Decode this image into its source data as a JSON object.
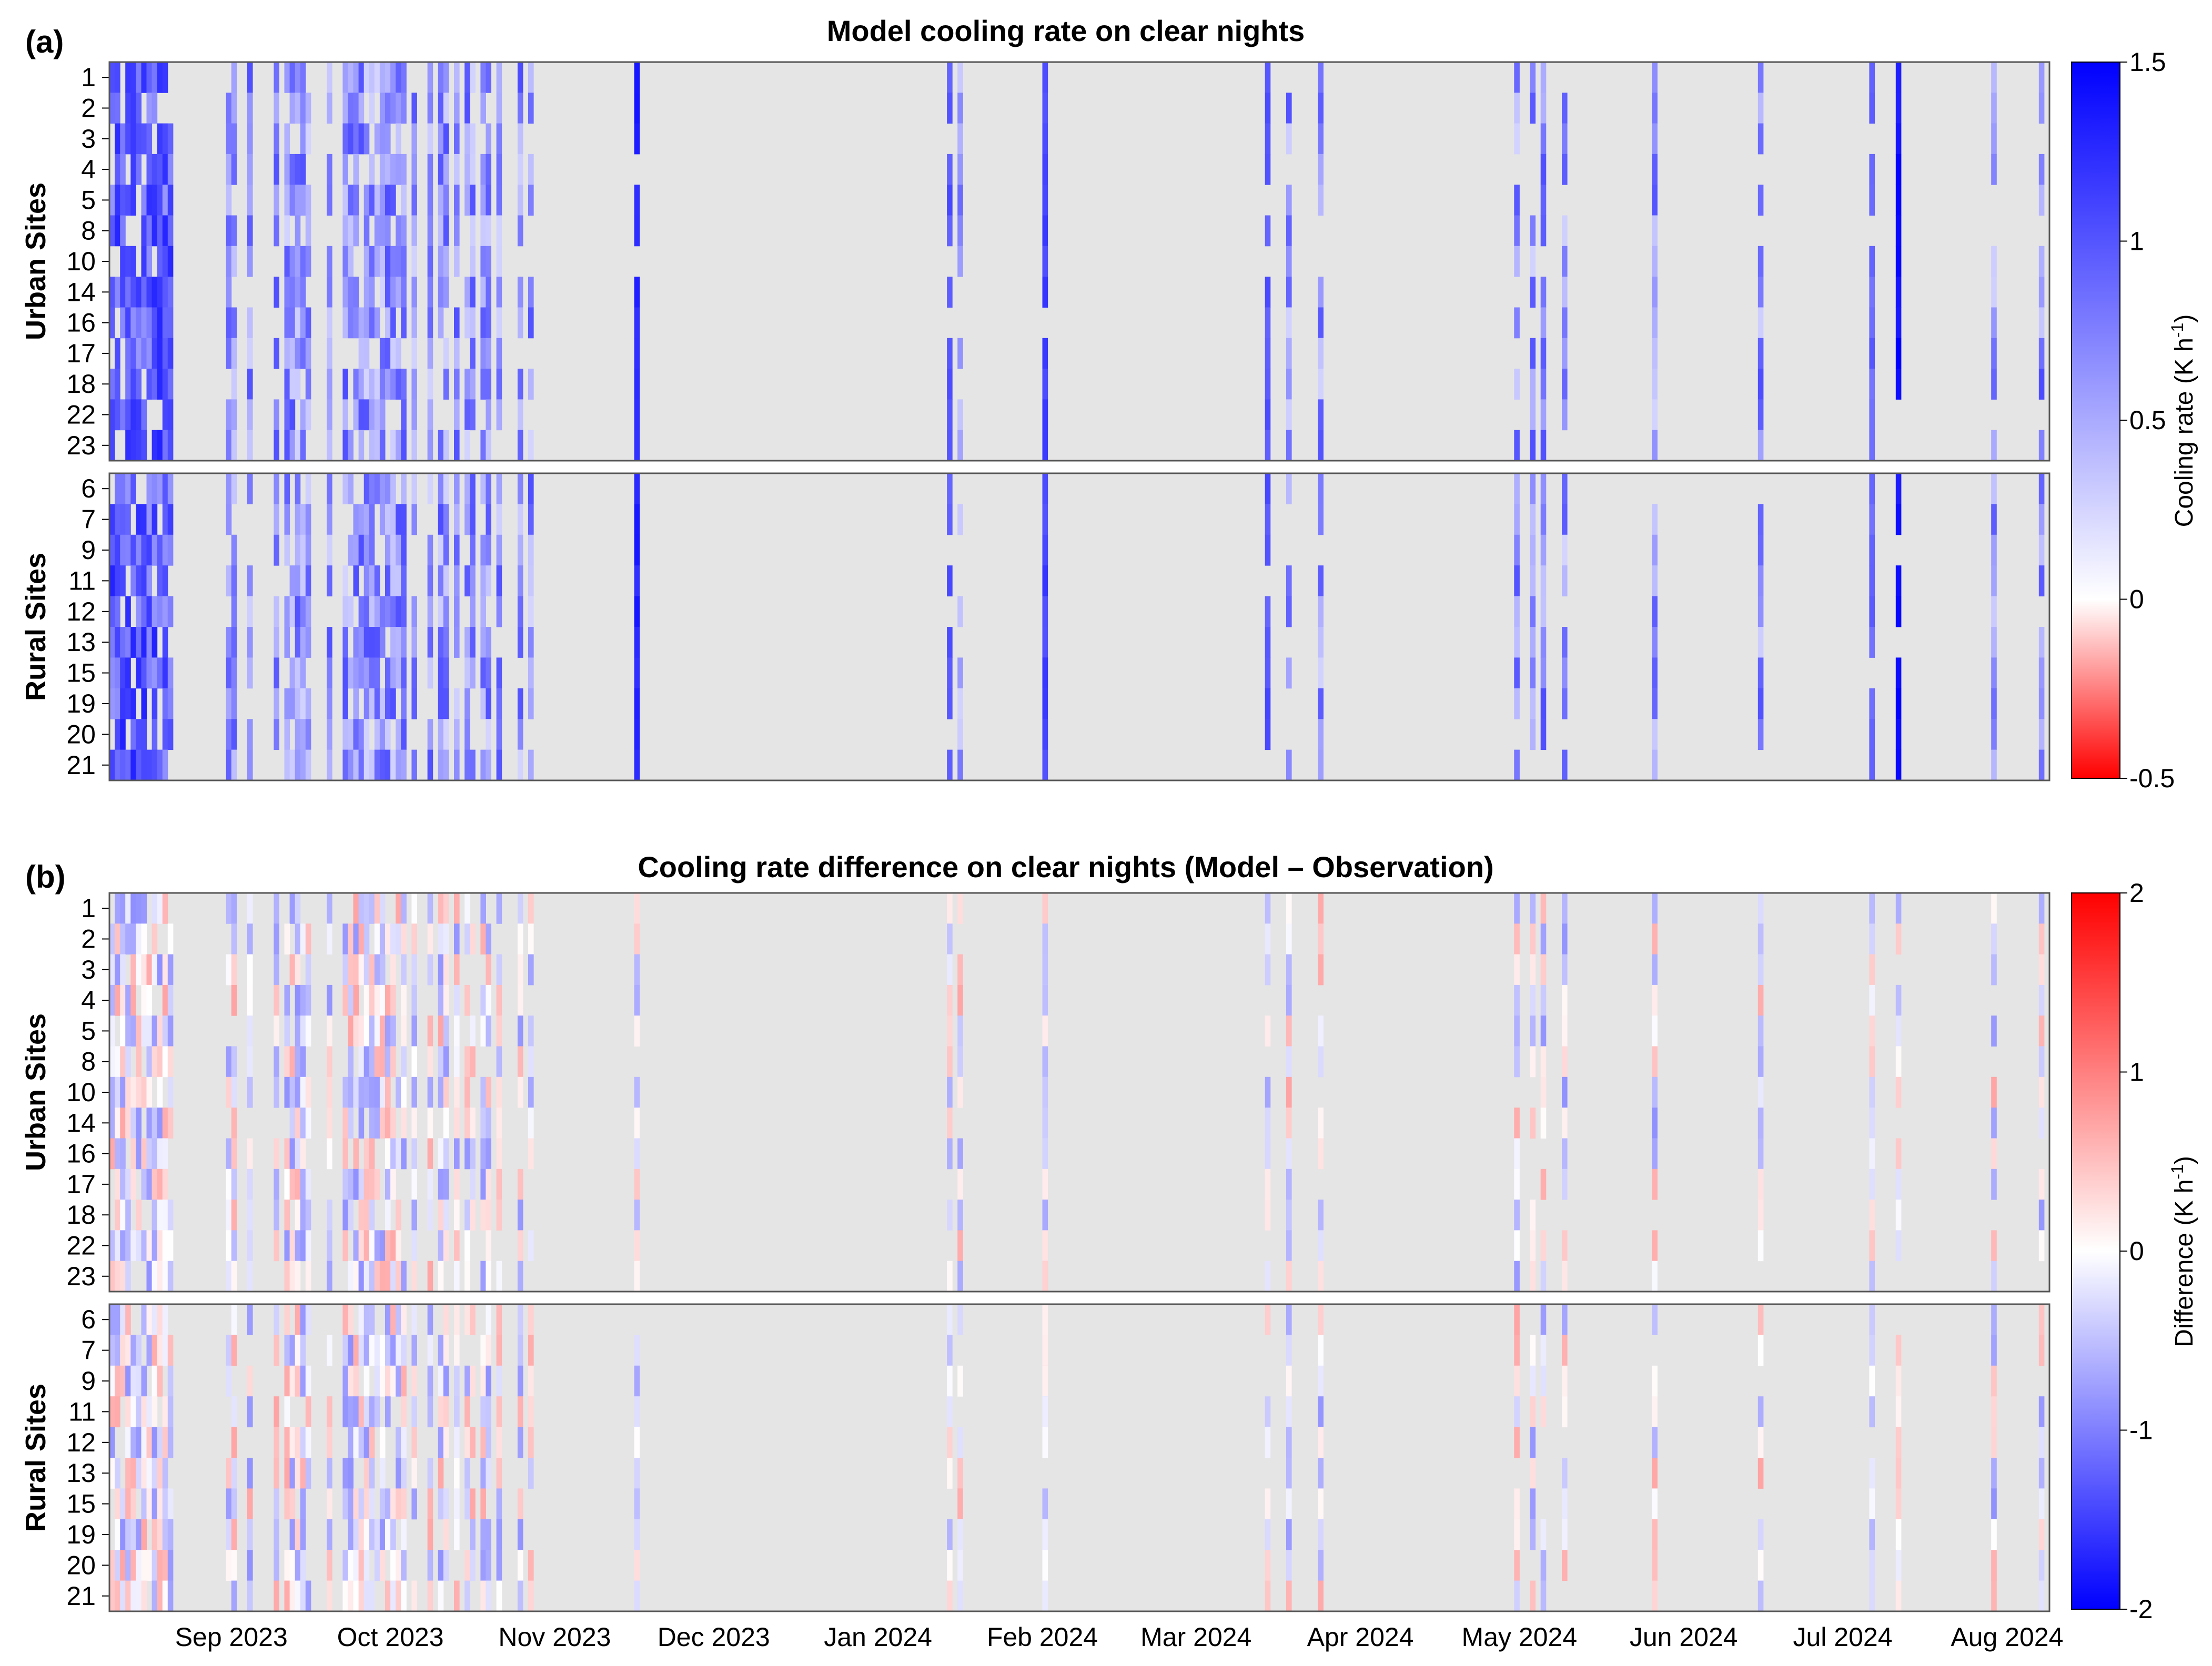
{
  "chart_data": [
    {
      "type": "heatmap",
      "panel_label": "(a)",
      "title": "Model cooling rate on clear nights",
      "x_tick_labels": [
        "Sep 2023",
        "Oct 2023",
        "Nov 2023",
        "Dec 2023",
        "Jan 2024",
        "Feb 2024",
        "Mar 2024",
        "Apr 2024",
        "May 2024",
        "Jun 2024",
        "Jul 2024",
        "Aug 2024"
      ],
      "groups": [
        {
          "name": "Urban Sites",
          "sites": [
            "1",
            "2",
            "3",
            "4",
            "5",
            "8",
            "10",
            "14",
            "16",
            "17",
            "18",
            "22",
            "23"
          ]
        },
        {
          "name": "Rural Sites",
          "sites": [
            "6",
            "7",
            "9",
            "11",
            "12",
            "13",
            "15",
            "19",
            "20",
            "21"
          ]
        }
      ],
      "colorbar": {
        "label": "Cooling rate (K h",
        "label_sup": "-1",
        "label_end": ")",
        "range": [
          -0.5,
          1.5
        ],
        "ticks": [
          "1.5",
          "1",
          "0.5",
          "0",
          "-0.5"
        ],
        "tick_values": [
          1.5,
          1,
          0.5,
          0,
          -0.5
        ],
        "colors": {
          "low": "#ff0000",
          "mid": "#ffffff",
          "high": "#0000ff",
          "no_data": "#e5e5e5"
        }
      }
    },
    {
      "type": "heatmap",
      "panel_label": "(b)",
      "title": "Cooling rate difference on clear nights (Model – Observation)",
      "x_tick_labels": [
        "Sep 2023",
        "Oct 2023",
        "Nov 2023",
        "Dec 2023",
        "Jan 2024",
        "Feb 2024",
        "Mar 2024",
        "Apr 2024",
        "May 2024",
        "Jun 2024",
        "Jul 2024",
        "Aug 2024"
      ],
      "groups": [
        {
          "name": "Urban Sites",
          "sites": [
            "1",
            "2",
            "3",
            "4",
            "5",
            "8",
            "10",
            "14",
            "16",
            "17",
            "18",
            "22",
            "23"
          ]
        },
        {
          "name": "Rural Sites",
          "sites": [
            "6",
            "7",
            "9",
            "11",
            "12",
            "13",
            "15",
            "19",
            "20",
            "21"
          ]
        }
      ],
      "colorbar": {
        "label": "Difference (K h",
        "label_sup": "-1",
        "label_end": ")",
        "range": [
          -2,
          2
        ],
        "ticks": [
          "2",
          "1",
          "0",
          "-1",
          "-2"
        ],
        "tick_values": [
          2,
          1,
          0,
          -1,
          -2
        ],
        "colors": {
          "low": "#0000ff",
          "mid": "#ffffff",
          "high": "#ff0000",
          "no_data": "#e5e5e5"
        }
      }
    }
  ]
}
